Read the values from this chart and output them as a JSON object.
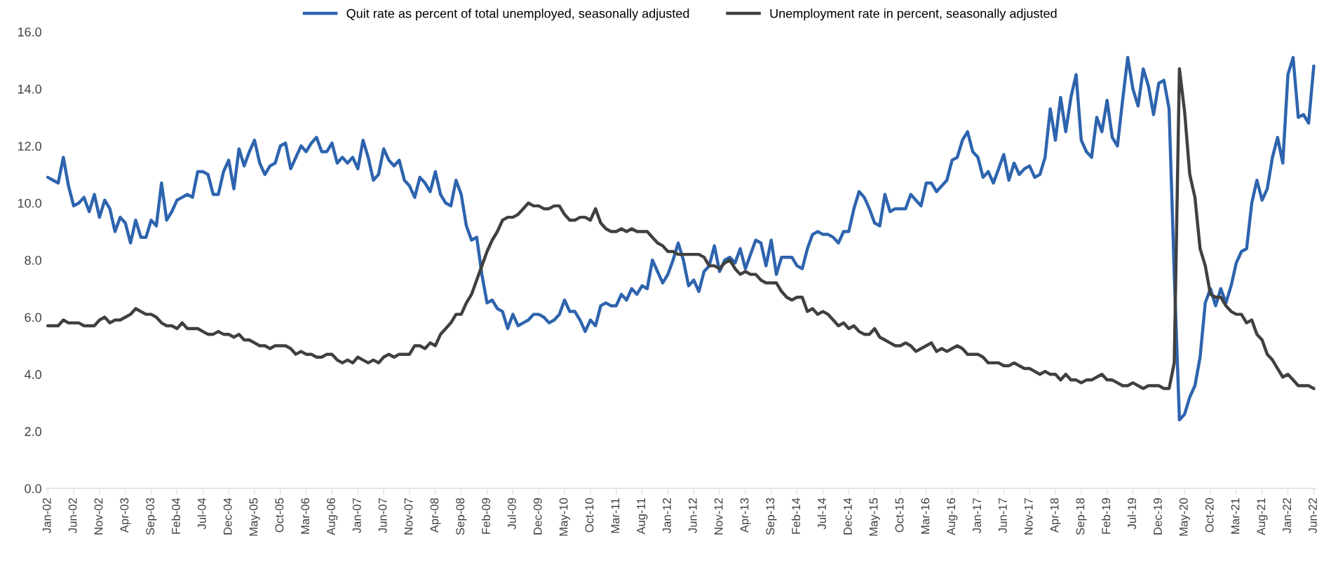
{
  "chart_data": {
    "type": "line",
    "categories": [
      "Jan-02",
      null,
      null,
      null,
      null,
      "Jun-02",
      null,
      null,
      null,
      null,
      "Nov-02",
      null,
      null,
      null,
      null,
      "Apr-03",
      null,
      null,
      null,
      null,
      "Sep-03",
      null,
      null,
      null,
      null,
      "Feb-04",
      null,
      null,
      null,
      null,
      "Jul-04",
      null,
      null,
      null,
      null,
      "Dec-04",
      null,
      null,
      null,
      null,
      "May-05",
      null,
      null,
      null,
      null,
      "Oct-05",
      null,
      null,
      null,
      null,
      "Mar-06",
      null,
      null,
      null,
      null,
      "Aug-06",
      null,
      null,
      null,
      null,
      "Jan-07",
      null,
      null,
      null,
      null,
      "Jun-07",
      null,
      null,
      null,
      null,
      "Nov-07",
      null,
      null,
      null,
      null,
      "Apr-08",
      null,
      null,
      null,
      null,
      "Sep-08",
      null,
      null,
      null,
      null,
      "Feb-09",
      null,
      null,
      null,
      null,
      "Jul-09",
      null,
      null,
      null,
      null,
      "Dec-09",
      null,
      null,
      null,
      null,
      "May-10",
      null,
      null,
      null,
      null,
      "Oct-10",
      null,
      null,
      null,
      null,
      "Mar-11",
      null,
      null,
      null,
      null,
      "Aug-11",
      null,
      null,
      null,
      null,
      "Jan-12",
      null,
      null,
      null,
      null,
      "Jun-12",
      null,
      null,
      null,
      null,
      "Nov-12",
      null,
      null,
      null,
      null,
      "Apr-13",
      null,
      null,
      null,
      null,
      "Sep-13",
      null,
      null,
      null,
      null,
      "Feb-14",
      null,
      null,
      null,
      null,
      "Jul-14",
      null,
      null,
      null,
      null,
      "Dec-14",
      null,
      null,
      null,
      null,
      "May-15",
      null,
      null,
      null,
      null,
      "Oct-15",
      null,
      null,
      null,
      null,
      "Mar-16",
      null,
      null,
      null,
      null,
      "Aug-16",
      null,
      null,
      null,
      null,
      "Jan-17",
      null,
      null,
      null,
      null,
      "Jun-17",
      null,
      null,
      null,
      null,
      "Nov-17",
      null,
      null,
      null,
      null,
      "Apr-18",
      null,
      null,
      null,
      null,
      "Sep-18",
      null,
      null,
      null,
      null,
      "Feb-19",
      null,
      null,
      null,
      null,
      "Jul-19",
      null,
      null,
      null,
      null,
      "Dec-19",
      null,
      null,
      null,
      null,
      "May-20",
      null,
      null,
      null,
      null,
      "Oct-20",
      null,
      null,
      null,
      null,
      "Mar-21",
      null,
      null,
      null,
      null,
      "Aug-21",
      null,
      null,
      null,
      null,
      "Jan-22",
      null,
      null,
      null,
      null,
      "Jun-22"
    ],
    "series": [
      {
        "name": "Quit rate as percent of total unemployed, seasonally adjusted",
        "color": "#2e64ae",
        "values": [
          10.9,
          10.8,
          10.7,
          11.6,
          10.6,
          9.9,
          10.0,
          10.2,
          9.7,
          10.3,
          9.5,
          10.1,
          9.8,
          9.0,
          9.5,
          9.3,
          8.6,
          9.4,
          8.8,
          8.8,
          9.4,
          9.2,
          10.7,
          9.4,
          9.7,
          10.1,
          10.2,
          10.3,
          10.2,
          11.1,
          11.1,
          11.0,
          10.3,
          10.3,
          11.1,
          11.5,
          10.5,
          11.9,
          11.3,
          11.8,
          12.2,
          11.4,
          11.0,
          11.3,
          11.4,
          12.0,
          12.1,
          11.2,
          11.6,
          12.0,
          11.8,
          12.1,
          12.3,
          11.8,
          11.8,
          12.1,
          11.4,
          11.6,
          11.4,
          11.6,
          11.2,
          12.2,
          11.6,
          10.8,
          11.0,
          11.9,
          11.5,
          11.3,
          11.5,
          10.8,
          10.6,
          10.2,
          10.9,
          10.7,
          10.4,
          11.1,
          10.3,
          10.0,
          9.9,
          10.8,
          10.3,
          9.2,
          8.7,
          8.8,
          7.5,
          6.5,
          6.6,
          6.3,
          6.2,
          5.6,
          6.1,
          5.7,
          5.8,
          5.9,
          6.1,
          6.1,
          6.0,
          5.8,
          5.9,
          6.1,
          6.6,
          6.2,
          6.2,
          5.9,
          5.5,
          5.9,
          5.7,
          6.4,
          6.5,
          6.4,
          6.4,
          6.8,
          6.6,
          7.0,
          6.8,
          7.1,
          7.0,
          8.0,
          7.6,
          7.2,
          7.5,
          8.0,
          8.6,
          8.0,
          7.1,
          7.3,
          6.9,
          7.6,
          7.8,
          8.5,
          7.6,
          8.0,
          8.1,
          7.9,
          8.4,
          7.7,
          8.2,
          8.7,
          8.6,
          7.8,
          8.7,
          7.5,
          8.1,
          8.1,
          8.1,
          7.8,
          7.7,
          8.4,
          8.9,
          9.0,
          8.9,
          8.9,
          8.8,
          8.6,
          9.0,
          9.0,
          9.8,
          10.4,
          10.2,
          9.8,
          9.3,
          9.2,
          10.3,
          9.7,
          9.8,
          9.8,
          9.8,
          10.3,
          10.1,
          9.9,
          10.7,
          10.7,
          10.4,
          10.6,
          10.8,
          11.5,
          11.6,
          12.2,
          12.5,
          11.8,
          11.6,
          10.9,
          11.1,
          10.7,
          11.2,
          11.7,
          10.8,
          11.4,
          11.0,
          11.2,
          11.3,
          10.9,
          11.0,
          11.6,
          13.3,
          12.2,
          13.7,
          12.5,
          13.7,
          14.5,
          12.2,
          11.8,
          11.6,
          13.0,
          12.5,
          13.6,
          12.3,
          12.0,
          13.6,
          15.1,
          14.0,
          13.4,
          14.7,
          14.1,
          13.1,
          14.2,
          14.3,
          13.3,
          7.5,
          2.4,
          2.6,
          3.2,
          3.6,
          4.6,
          6.5,
          7.0,
          6.4,
          7.0,
          6.5,
          7.1,
          7.9,
          8.3,
          8.4,
          10.0,
          10.8,
          10.1,
          10.5,
          11.6,
          12.3,
          11.4,
          14.5,
          15.1,
          13.0,
          13.1,
          12.8,
          14.8
        ]
      },
      {
        "name": "Unemployment rate in percent, seasonally adjusted",
        "color": "#404040",
        "values": [
          5.7,
          5.7,
          5.7,
          5.9,
          5.8,
          5.8,
          5.8,
          5.7,
          5.7,
          5.7,
          5.9,
          6.0,
          5.8,
          5.9,
          5.9,
          6.0,
          6.1,
          6.3,
          6.2,
          6.1,
          6.1,
          6.0,
          5.8,
          5.7,
          5.7,
          5.6,
          5.8,
          5.6,
          5.6,
          5.6,
          5.5,
          5.4,
          5.4,
          5.5,
          5.4,
          5.4,
          5.3,
          5.4,
          5.2,
          5.2,
          5.1,
          5.0,
          5.0,
          4.9,
          5.0,
          5.0,
          5.0,
          4.9,
          4.7,
          4.8,
          4.7,
          4.7,
          4.6,
          4.6,
          4.7,
          4.7,
          4.5,
          4.4,
          4.5,
          4.4,
          4.6,
          4.5,
          4.4,
          4.5,
          4.4,
          4.6,
          4.7,
          4.6,
          4.7,
          4.7,
          4.7,
          5.0,
          5.0,
          4.9,
          5.1,
          5.0,
          5.4,
          5.6,
          5.8,
          6.1,
          6.1,
          6.5,
          6.8,
          7.3,
          7.8,
          8.3,
          8.7,
          9.0,
          9.4,
          9.5,
          9.5,
          9.6,
          9.8,
          10.0,
          9.9,
          9.9,
          9.8,
          9.8,
          9.9,
          9.9,
          9.6,
          9.4,
          9.4,
          9.5,
          9.5,
          9.4,
          9.8,
          9.3,
          9.1,
          9.0,
          9.0,
          9.1,
          9.0,
          9.1,
          9.0,
          9.0,
          9.0,
          8.8,
          8.6,
          8.5,
          8.3,
          8.3,
          8.2,
          8.2,
          8.2,
          8.2,
          8.2,
          8.1,
          7.8,
          7.8,
          7.7,
          7.9,
          8.0,
          7.7,
          7.5,
          7.6,
          7.5,
          7.5,
          7.3,
          7.2,
          7.2,
          7.2,
          6.9,
          6.7,
          6.6,
          6.7,
          6.7,
          6.2,
          6.3,
          6.1,
          6.2,
          6.1,
          5.9,
          5.7,
          5.8,
          5.6,
          5.7,
          5.5,
          5.4,
          5.4,
          5.6,
          5.3,
          5.2,
          5.1,
          5.0,
          5.0,
          5.1,
          5.0,
          4.8,
          4.9,
          5.0,
          5.1,
          4.8,
          4.9,
          4.8,
          4.9,
          5.0,
          4.9,
          4.7,
          4.7,
          4.7,
          4.6,
          4.4,
          4.4,
          4.4,
          4.3,
          4.3,
          4.4,
          4.3,
          4.2,
          4.2,
          4.1,
          4.0,
          4.1,
          4.0,
          4.0,
          3.8,
          4.0,
          3.8,
          3.8,
          3.7,
          3.8,
          3.8,
          3.9,
          4.0,
          3.8,
          3.8,
          3.7,
          3.6,
          3.6,
          3.7,
          3.6,
          3.5,
          3.6,
          3.6,
          3.6,
          3.5,
          3.5,
          4.4,
          14.7,
          13.2,
          11.0,
          10.2,
          8.4,
          7.8,
          6.8,
          6.7,
          6.7,
          6.4,
          6.2,
          6.1,
          6.1,
          5.8,
          5.9,
          5.4,
          5.2,
          4.7,
          4.5,
          4.2,
          3.9,
          4.0,
          3.8,
          3.6,
          3.6,
          3.6,
          3.5
        ]
      }
    ],
    "ylim": [
      0,
      16
    ],
    "yticks": [
      {
        "value": 0,
        "label": "0.0"
      },
      {
        "value": 2,
        "label": "2.0"
      },
      {
        "value": 4,
        "label": "4.0"
      },
      {
        "value": 6,
        "label": "6.0"
      },
      {
        "value": 8,
        "label": "8.0"
      },
      {
        "value": 10,
        "label": "10.0"
      },
      {
        "value": 12,
        "label": "12.0"
      },
      {
        "value": 14,
        "label": "14.0"
      },
      {
        "value": 16,
        "label": "16.0"
      }
    ],
    "grid": false,
    "legend": "top",
    "marker": "none",
    "line_style": "solid"
  }
}
